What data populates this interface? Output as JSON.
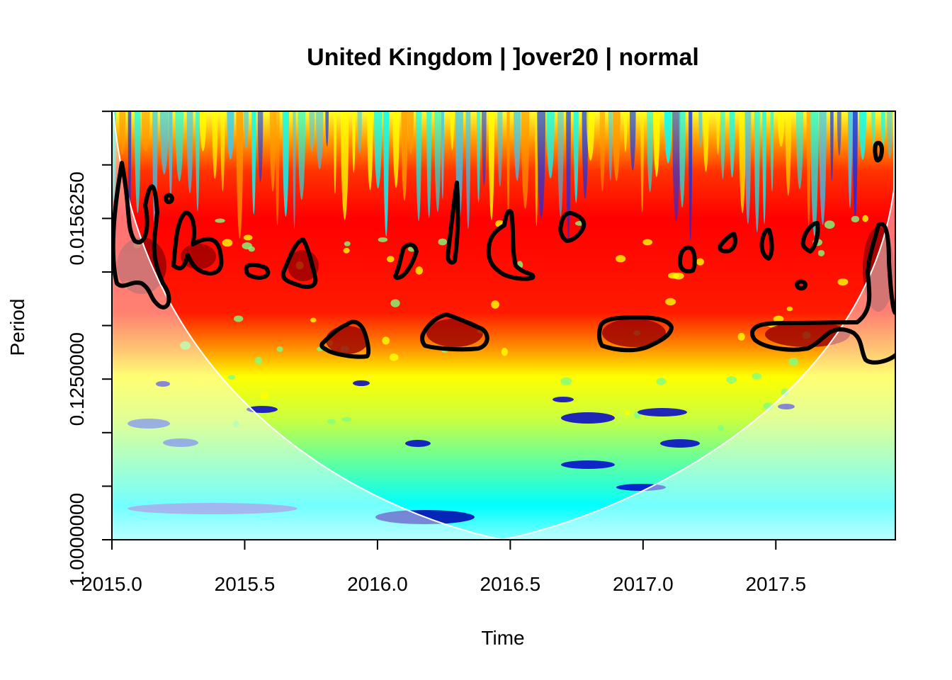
{
  "chart_data": {
    "type": "heatmap",
    "title": "United Kingdom | ]over20 | normal",
    "xlabel": "Time",
    "ylabel": "Period",
    "x_ticks": [
      2015.0,
      2015.5,
      2016.0,
      2016.5,
      2017.0,
      2017.5
    ],
    "x_tick_labels": [
      "2015.0",
      "2015.5",
      "2016.0",
      "2016.5",
      "2017.0",
      "2017.5"
    ],
    "xlim": [
      2015.0,
      2017.95
    ],
    "y_scale": "log2",
    "y_labeled_ticks": [
      0.015625,
      0.125,
      1.0
    ],
    "y_tick_labels": [
      "0.0156250",
      "0.1250000",
      "1.0000000"
    ],
    "ylim": [
      0.0039,
      1.0
    ],
    "colormap": [
      "#00007f",
      "#0000ff",
      "#007fff",
      "#00ffff",
      "#7fff7f",
      "#ffff00",
      "#ff7f00",
      "#ff0000",
      "#7f0000"
    ],
    "cone_of_influence": true,
    "contour_color": "#000000",
    "significance_regions_period": [
      0.025,
      0.09
    ]
  }
}
